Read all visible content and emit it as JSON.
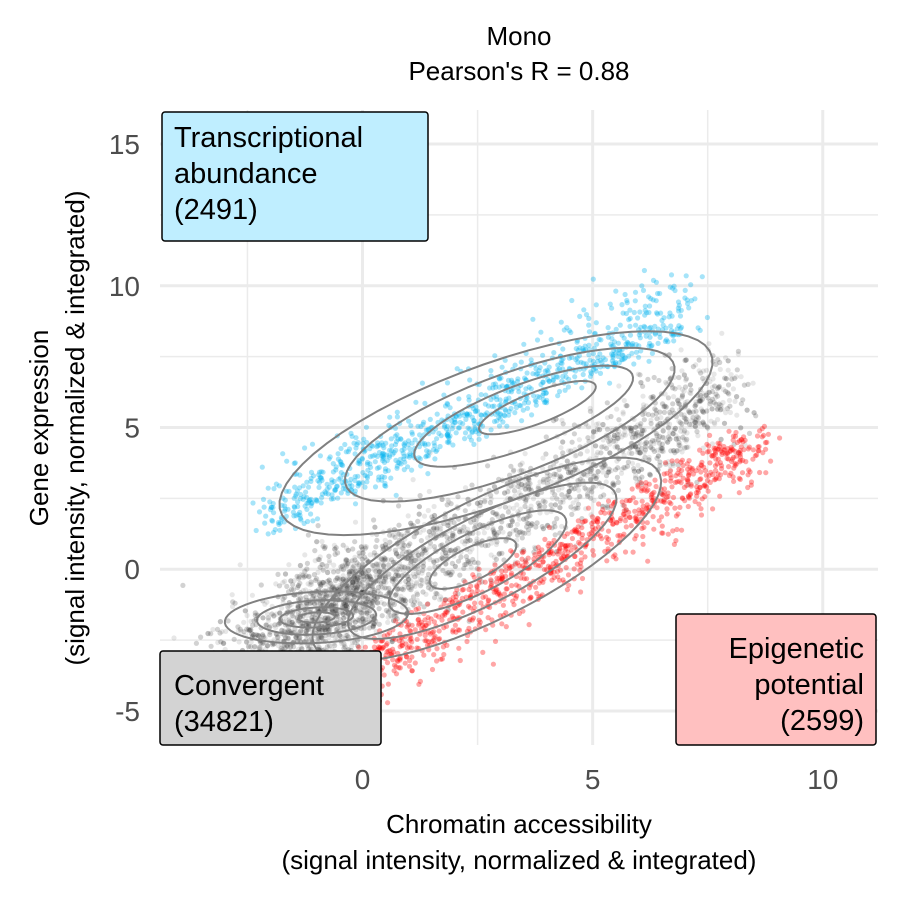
{
  "chart_data": {
    "type": "scatter",
    "title": "Mono",
    "subtitle": "Pearson's R = 0.88",
    "xlabel": [
      "Chromatin accessibility",
      "(signal intensity, normalized & integrated)"
    ],
    "ylabel": [
      "Gene expression",
      "(signal intensity, normalized & integrated)"
    ],
    "xlim": [
      -4.4,
      11.2
    ],
    "ylim": [
      -6.2,
      16.2
    ],
    "xticks": [
      0,
      5,
      10
    ],
    "xtick_labels": [
      "0",
      "5",
      "10"
    ],
    "yticks": [
      -5,
      0,
      5,
      10,
      15
    ],
    "ytick_labels": [
      "-5",
      "0",
      "5",
      "10",
      "15"
    ],
    "grid": true,
    "density_contours": true,
    "groups": [
      {
        "key": "convergent",
        "label_lines": [
          "Convergent",
          " (34821)"
        ],
        "count": 34821,
        "color": "#3a3a3a",
        "box_color": "#d3d3d3",
        "position": "bottom-left"
      },
      {
        "key": "transcriptional",
        "label_lines": [
          "Transcriptional",
          "abundance",
          " (2491)"
        ],
        "count": 2491,
        "color": "#00b2ee",
        "box_color": "#bfeeff",
        "position": "top-left"
      },
      {
        "key": "epigenetic",
        "label_lines": [
          "Epigenetic",
          "potential",
          "(2599)"
        ],
        "count": 2599,
        "color": "#ff0000",
        "box_color": "#ffc0c0",
        "position": "bottom-right"
      }
    ],
    "contour_color": "#808080"
  }
}
